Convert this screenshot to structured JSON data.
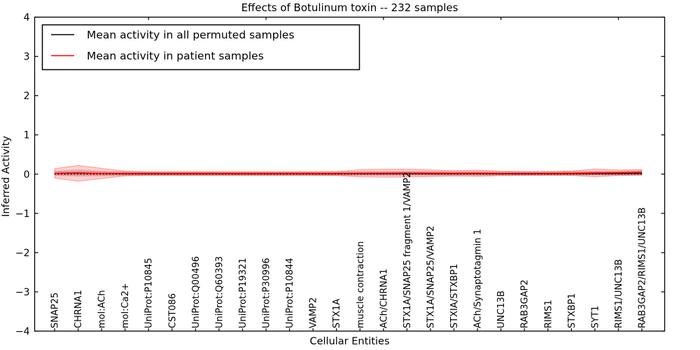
{
  "title": "Effects of Botulinum toxin -- 232 samples",
  "legend": {
    "items": [
      {
        "label": "Mean activity in all permuted samples",
        "color": "#000000"
      },
      {
        "label": "Mean activity in patient samples",
        "color": "#ff0000"
      }
    ]
  },
  "chart_data": {
    "type": "line",
    "title": "Effects of Botulinum toxin -- 232 samples",
    "xlabel": "Cellular Entities",
    "ylabel": "Inferred Activity",
    "ylim": [
      -4,
      4
    ],
    "ytick_values": [
      -4,
      -3,
      -2,
      -1,
      0,
      1,
      2,
      3,
      4
    ],
    "ytick_labels": [
      "−4",
      "−3",
      "−2",
      "−1",
      "0",
      "1",
      "2",
      "3",
      "4"
    ],
    "grid": false,
    "legend_position": "upper left",
    "categories": [
      "SNAP25",
      "CHRNA1",
      "mol:ACh",
      "mol:Ca2+",
      "UniProt:P10845",
      "CST086",
      "UniProt:Q00496",
      "UniProt:Q60393",
      "UniProt:P19321",
      "UniProt:P30996",
      "UniProt:P10844",
      "VAMP2",
      "STX1A",
      "muscle contraction",
      "ACh/CHRNA1",
      "STX1A/SNAP25 fragment 1/VAMP2",
      "STX1A/SNAP25/VAMP2",
      "STXIA/STXBP1",
      "ACh/Synaptotagmin 1",
      "UNC13B",
      "RAB3GAP2",
      "RIMS1",
      "STXBP1",
      "SYT1",
      "RIMS1/UNC13B",
      "RAB3GAP2/RIMS1/UNC13B"
    ],
    "series": [
      {
        "name": "Mean activity in all permuted samples",
        "color": "#000000",
        "width": 1.2,
        "values": [
          0.02,
          0.03,
          0.015,
          0.01,
          0.008,
          0.008,
          0.008,
          0.008,
          0.008,
          0.008,
          0.008,
          0.008,
          0.008,
          0.01,
          0.01,
          0.012,
          0.01,
          0.01,
          0.01,
          0.008,
          0.008,
          0.008,
          0.01,
          0.012,
          0.012,
          0.015
        ]
      },
      {
        "name": "Mean activity in patient samples",
        "color": "#ff0000",
        "width": 1.6,
        "values": [
          0.018,
          0.02,
          0.018,
          0.015,
          0.014,
          0.014,
          0.014,
          0.014,
          0.014,
          0.014,
          0.014,
          0.014,
          0.015,
          0.02,
          0.022,
          0.025,
          0.022,
          0.02,
          0.022,
          0.018,
          0.018,
          0.018,
          0.022,
          0.03,
          0.035,
          0.045
        ]
      }
    ],
    "bands": [
      {
        "name": "permuted-std-band",
        "fill": "#999999",
        "opacity": 0.38,
        "stroke": "none",
        "stroke_opacity": 0,
        "center_series": 0,
        "halfwidths": [
          0.07,
          0.09,
          0.07,
          0.055,
          0.05,
          0.05,
          0.05,
          0.05,
          0.05,
          0.05,
          0.05,
          0.05,
          0.05,
          0.055,
          0.055,
          0.06,
          0.055,
          0.05,
          0.055,
          0.05,
          0.05,
          0.05,
          0.05,
          0.055,
          0.055,
          0.06
        ]
      },
      {
        "name": "patient-std-band",
        "fill": "#ff2a2a",
        "opacity": 0.22,
        "stroke": "#ff5555",
        "stroke_opacity": 0.55,
        "center_series": 1,
        "halfwidths": [
          0.12,
          0.2,
          0.13,
          0.06,
          0.045,
          0.045,
          0.045,
          0.045,
          0.045,
          0.045,
          0.045,
          0.045,
          0.05,
          0.09,
          0.1,
          0.1,
          0.085,
          0.07,
          0.08,
          0.055,
          0.05,
          0.05,
          0.055,
          0.1,
          0.07,
          0.07
        ]
      },
      {
        "name": "patient-core-band",
        "fill": "#ff2a2a",
        "opacity": 0.3,
        "stroke": "none",
        "stroke_opacity": 0,
        "center_series": 1,
        "halfwidth": 0.05
      }
    ],
    "zero_line": {
      "value": 0,
      "color": "#000000",
      "dash": "1.6 3",
      "width": 1.3
    }
  }
}
